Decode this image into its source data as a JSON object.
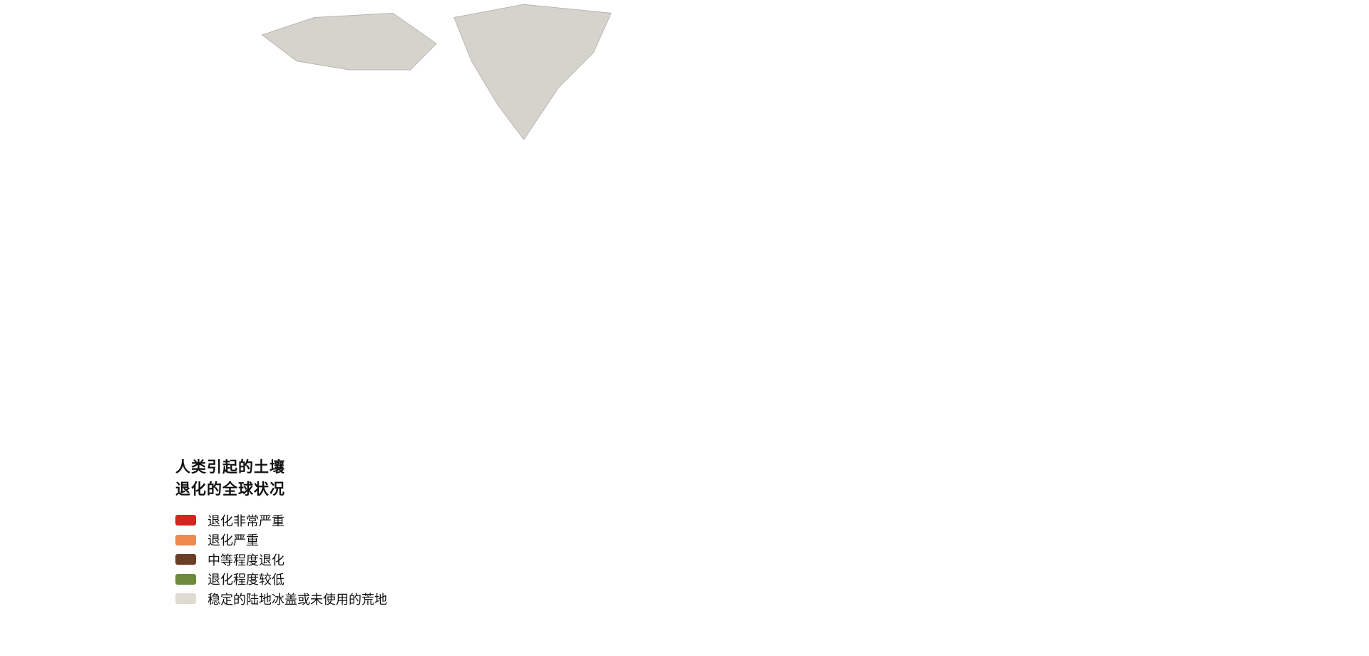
{
  "legend": {
    "title_line1": "人类引起的土壤",
    "title_line2": "退化的全球状况",
    "items": [
      {
        "label": "退化非常严重",
        "color": "#d2261f"
      },
      {
        "label": "退化严重",
        "color": "#f0894c"
      },
      {
        "label": "中等程度退化",
        "color": "#6b3e27"
      },
      {
        "label": "退化程度较低",
        "color": "#6c8a3a"
      },
      {
        "label": "稳定的陆地冰盖或未使用的荒地",
        "color": "#dddbd2"
      }
    ]
  },
  "colors": {
    "land_base": "#d5d3cb",
    "background": "#ffffff"
  }
}
